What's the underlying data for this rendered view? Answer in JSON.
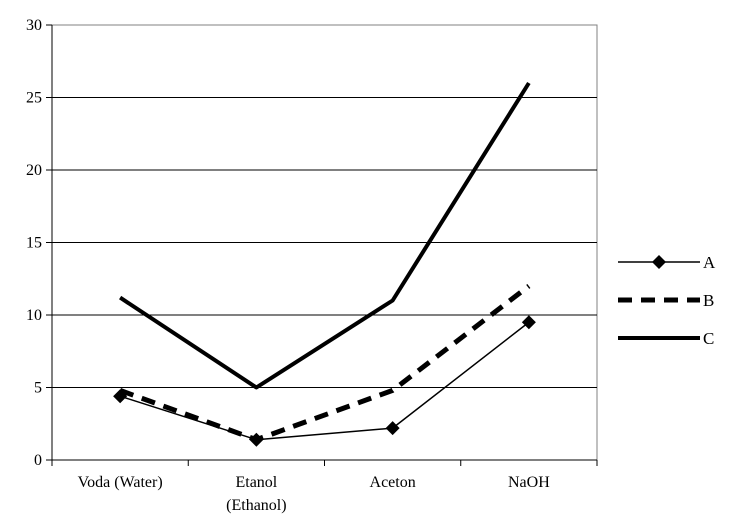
{
  "chart_data": {
    "type": "line",
    "title": "",
    "xlabel": "",
    "ylabel": "",
    "categories": [
      {
        "line1": "Voda (Water)",
        "line2": ""
      },
      {
        "line1": "Etanol",
        "line2": "(Ethanol)"
      },
      {
        "line1": "Aceton",
        "line2": ""
      },
      {
        "line1": "NaOH",
        "line2": ""
      }
    ],
    "ylim": [
      0,
      30
    ],
    "yticks": [
      "0",
      "5",
      "10",
      "15",
      "20",
      "25",
      "30"
    ],
    "grid": true,
    "legend_position": "right",
    "series": [
      {
        "name": "A",
        "values": [
          4.4,
          1.4,
          2.2,
          9.5
        ],
        "style": "solid-thin",
        "marker": "diamond",
        "color": "#000000"
      },
      {
        "name": "B",
        "values": [
          4.8,
          1.4,
          4.8,
          12.0
        ],
        "style": "dashed",
        "marker": "none",
        "color": "#000000"
      },
      {
        "name": "C",
        "values": [
          11.2,
          5.0,
          11.0,
          26.0
        ],
        "style": "solid-thick",
        "marker": "none",
        "color": "#000000"
      }
    ]
  }
}
